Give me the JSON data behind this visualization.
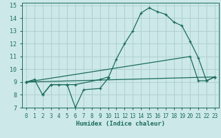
{
  "bg_color": "#cce8e8",
  "grid_color": "#b0d0d0",
  "line_color": "#1a6b5a",
  "xlabel": "Humidex (Indice chaleur)",
  "xlim": [
    -0.5,
    23.5
  ],
  "ylim": [
    7,
    15.2
  ],
  "xticks": [
    0,
    1,
    2,
    3,
    4,
    5,
    6,
    7,
    8,
    9,
    10,
    11,
    12,
    13,
    14,
    15,
    16,
    17,
    18,
    19,
    20,
    21,
    22,
    23
  ],
  "yticks": [
    7,
    8,
    9,
    10,
    11,
    12,
    13,
    14,
    15
  ],
  "lines": [
    {
      "x": [
        0,
        1,
        2,
        3,
        5,
        6,
        7,
        9,
        10,
        11,
        12,
        13,
        14,
        15,
        16,
        17,
        18,
        19,
        20,
        21,
        22,
        23
      ],
      "y": [
        9.0,
        9.2,
        8.0,
        8.8,
        8.8,
        7.0,
        8.4,
        8.5,
        9.3,
        10.8,
        12.0,
        13.0,
        14.4,
        14.8,
        14.5,
        14.3,
        13.7,
        13.4,
        12.2,
        10.9,
        9.1,
        9.4
      ]
    },
    {
      "x": [
        0,
        20,
        21,
        22,
        23
      ],
      "y": [
        9.0,
        11.0,
        9.1,
        9.1,
        9.4
      ]
    },
    {
      "x": [
        0,
        23
      ],
      "y": [
        9.0,
        9.4
      ]
    },
    {
      "x": [
        2,
        3,
        4,
        5,
        6,
        9,
        10
      ],
      "y": [
        8.0,
        8.8,
        8.8,
        8.8,
        8.8,
        9.2,
        9.4
      ]
    }
  ]
}
